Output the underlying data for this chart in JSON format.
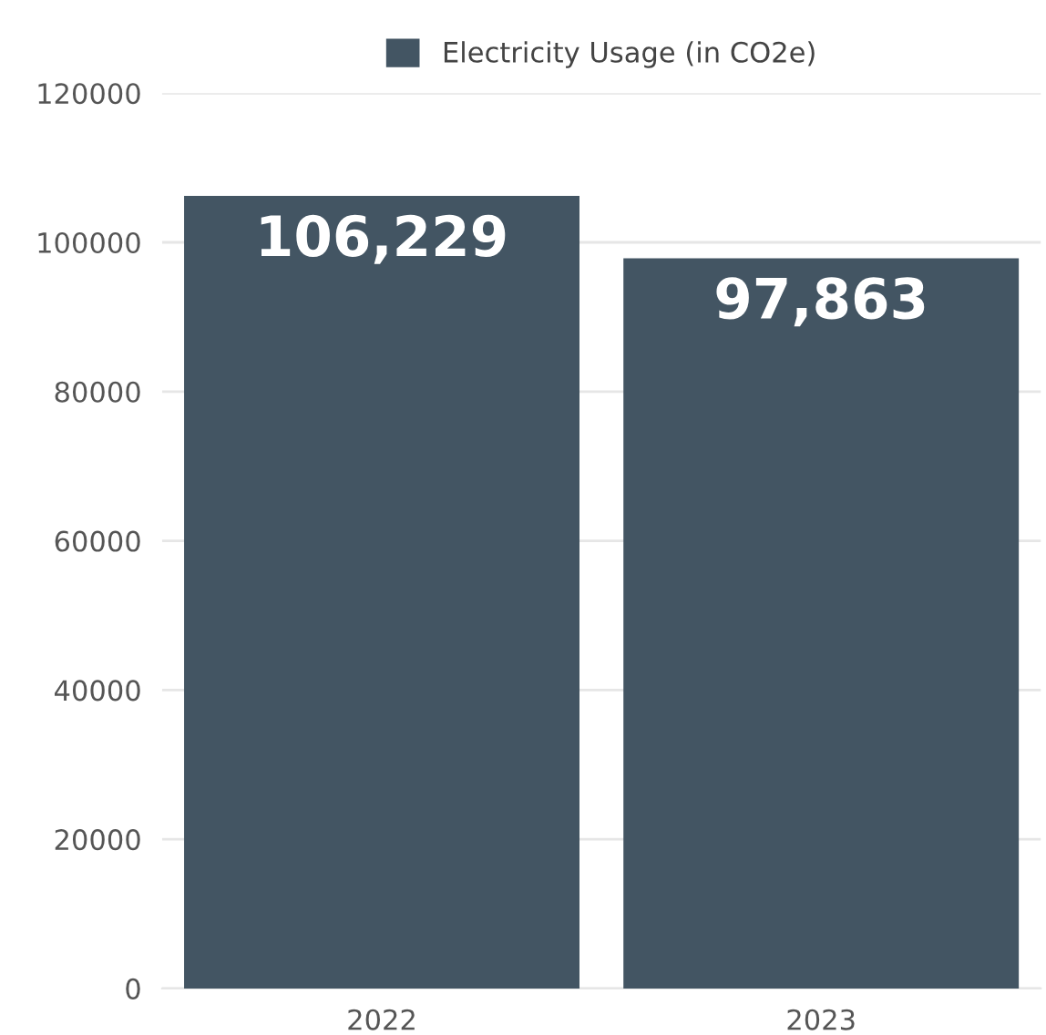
{
  "chart_data": {
    "type": "bar",
    "categories": [
      "2022",
      "2023"
    ],
    "series": [
      {
        "name": "Electricity Usage (in CO2e)",
        "color": "#435563",
        "values": [
          106229,
          97863
        ],
        "value_labels": [
          "106,229",
          "97,863"
        ]
      }
    ],
    "ylim": [
      0,
      120000
    ],
    "yticks": [
      0,
      20000,
      40000,
      60000,
      80000,
      100000,
      120000
    ],
    "grid": "y",
    "legend": "top"
  }
}
